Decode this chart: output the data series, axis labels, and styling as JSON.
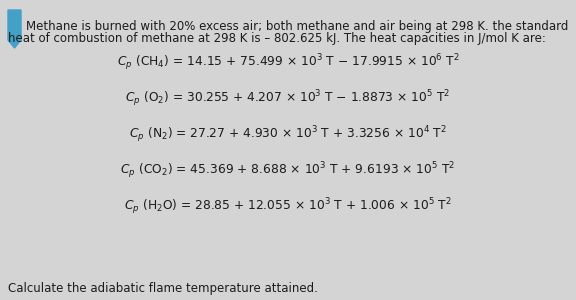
{
  "bg_color": "#d4d4d4",
  "bookmark_color": "#45a0c8",
  "intro_line1": "Methane is burned with 20% excess air; both methane and air being at 298 K. the standard",
  "intro_line2": "heat of combustion of methane at 298 K is – 802.625 kJ. The heat capacities in J/mol K are:",
  "equations": [
    "Cp (CH4) = 14.15 + 75.499 × 10³ T − 17.9915 × 10⁶ T²",
    "Cp (O2) = 30.255 + 4.207 × 10³ T − 1.8873 × 10⁵ T²",
    "Cp (N2) = 27.27 + 4.930 × 10³ T + 3.3256 × 10⁴ T²",
    "Cp (CO2) = 45.369 + 8.688 × 10³ T + 9.6193 × 10⁵ T²",
    "Cp (H2O) = 28.85 + 12.055 × 10³ T + 1.006 × 10⁵ T²"
  ],
  "footer_text": "Calculate the adiabatic flame temperature attained.",
  "font_size_intro": 8.5,
  "font_size_eq": 8.8,
  "font_size_footer": 8.5,
  "text_color": "#1c1c1c"
}
